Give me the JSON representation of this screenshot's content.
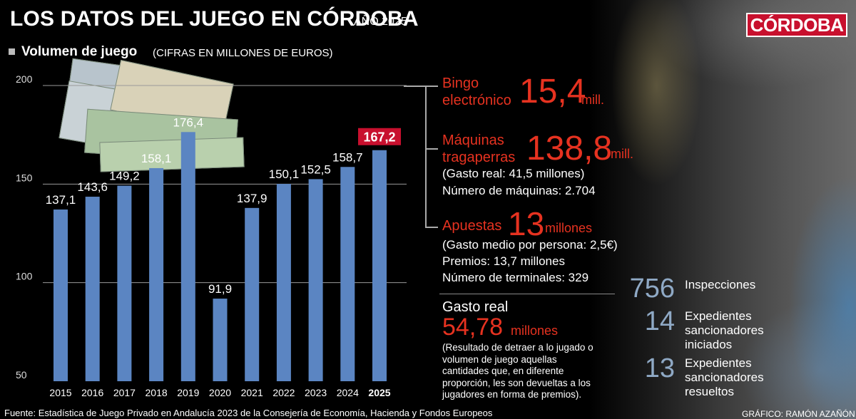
{
  "header": {
    "title": "LOS DATOS DEL JUEGO EN CÓRDOBA",
    "year": "AÑO 2025",
    "logo": "CÓRDOBA"
  },
  "subtitle": {
    "label": "Volumen de juego",
    "note": "(CIFRAS EN MILLONES DE EUROS)"
  },
  "chart_data": {
    "type": "bar",
    "title": "Volumen de juego",
    "categories": [
      "2015",
      "2016",
      "2017",
      "2018",
      "2019",
      "2020",
      "2021",
      "2022",
      "2023",
      "2024",
      "2025"
    ],
    "values": [
      137.1,
      143.6,
      149.2,
      158.1,
      176.4,
      91.9,
      137.9,
      150.1,
      152.5,
      158.7,
      167.2
    ],
    "value_labels": [
      "137,1",
      "143,6",
      "149,2",
      "158,1",
      "176,4",
      "91,9",
      "137,9",
      "150,1",
      "152,5",
      "158,7",
      "167,2"
    ],
    "highlight_index": 10,
    "ylim": [
      50,
      200
    ],
    "yticks": [
      50,
      100,
      150,
      200
    ],
    "grid": true,
    "bar_color": "#5b85c2",
    "highlight_color": "#c8102e"
  },
  "breakdown": {
    "bingo": {
      "label_line1": "Bingo",
      "label_line2": "electrónico",
      "value": "15,4",
      "unit": "mill."
    },
    "maquinas": {
      "label_line1": "Máquinas",
      "label_line2": "tragaperras",
      "value": "138,8",
      "unit": "mill.",
      "detail1": "(Gasto real: 41,5 millones)",
      "detail2": "Número de máquinas: 2.704"
    },
    "apuestas": {
      "label": "Apuestas",
      "value": "13",
      "unit": "millones",
      "detail1": "(Gasto medio por persona: 2,5€)",
      "detail2": "Premios: 13,7 millones",
      "detail3": "Número de terminales: 329"
    },
    "gasto_real": {
      "label": "Gasto real",
      "value": "54,78",
      "unit": "millones",
      "note": [
        "(Resultado de detraer a lo jugado o",
        "volumen de juego aquellas",
        "cantidades que, en diferente",
        "proporción, les son devueltas a los",
        "jugadores en forma de premios)."
      ]
    }
  },
  "stats": [
    {
      "number": "756",
      "label": [
        "Inspecciones"
      ]
    },
    {
      "number": "14",
      "label": [
        "Expedientes",
        "sancionadores",
        "iniciados"
      ]
    },
    {
      "number": "13",
      "label": [
        "Expedientes",
        "sancionadores",
        "resueltos"
      ]
    }
  ],
  "footer": {
    "source": "Fuente: Estadística de Juego Privado en Andalucía 2023 de la Consejería de Economía, Hacienda y Fondos Europeos",
    "credit": "GRÁFICO: RAMÓN AZAÑÓN"
  },
  "colors": {
    "accent_red": "#e63220",
    "stat_blue": "#8fa9c5"
  }
}
